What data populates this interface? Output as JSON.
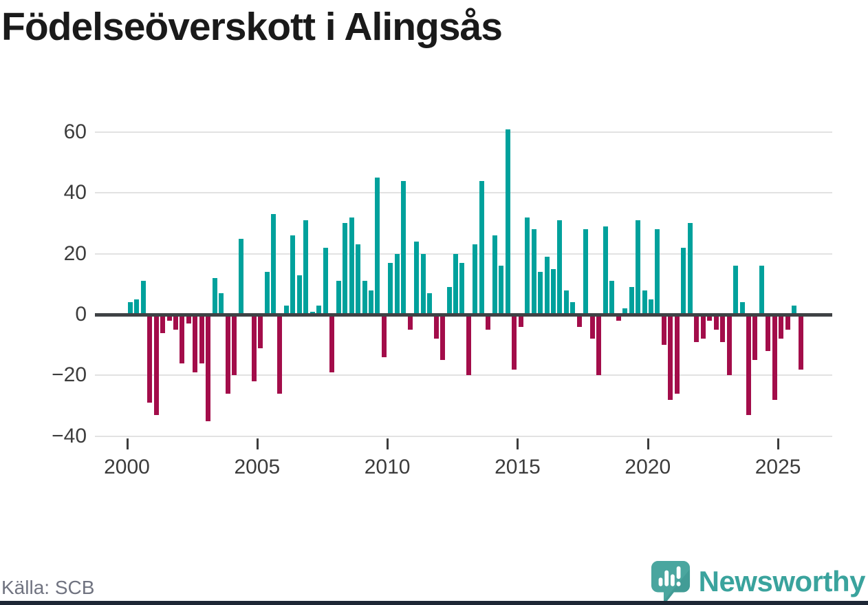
{
  "header": {
    "title": "Födelseöverskott i Alingsås"
  },
  "footer": {
    "source_label": "Källa: SCB",
    "brand": "Newsworthy"
  },
  "colors": {
    "positive": "#00a19c",
    "negative": "#a30d4a",
    "gridline": "#e2e2e2",
    "zero_line": "#3f4245",
    "axis_text": "#3c3c3c",
    "title_text": "#1a1a1a",
    "source_text": "#707380",
    "brand_teal": "#3aa39d",
    "bottom_strip": "#1e2735"
  },
  "chart_data": {
    "type": "bar",
    "title": "Födelseöverskott i Alingsås",
    "xlabel": "",
    "ylabel": "",
    "x_unit": "quarter",
    "start_year": 2000,
    "quarters_per_year": 4,
    "x_range": [
      "2000 Q1",
      "2025 Q4"
    ],
    "x_tick_years": [
      2000,
      2005,
      2010,
      2015,
      2020,
      2025
    ],
    "y_ticks": [
      60,
      40,
      20,
      0,
      -20,
      -40
    ],
    "ylim": [
      -42,
      65
    ],
    "grid": true,
    "legend": "none",
    "series": [
      {
        "name": "Födelseöverskott",
        "values": [
          4,
          5,
          11,
          -29,
          -33,
          -6,
          -2,
          -5,
          -16,
          -3,
          -19,
          -16,
          -35,
          12,
          7,
          -26,
          -20,
          25,
          0,
          -22,
          -11,
          14,
          33,
          -26,
          3,
          26,
          13,
          31,
          1,
          3,
          22,
          -19,
          11,
          30,
          32,
          23,
          11,
          8,
          45,
          -14,
          17,
          20,
          44,
          -5,
          24,
          20,
          7,
          -8,
          -15,
          9,
          20,
          17,
          -20,
          23,
          44,
          -5,
          26,
          16,
          61,
          -18,
          -4,
          32,
          28,
          14,
          19,
          15,
          31,
          8,
          4,
          -4,
          28,
          -8,
          -20,
          29,
          11,
          -2,
          2,
          9,
          31,
          8,
          5,
          28,
          -10,
          -28,
          -26,
          22,
          30,
          -9,
          -8,
          -2,
          -5,
          -9,
          -20,
          16,
          4,
          -33,
          -15,
          16,
          -12,
          -28,
          -8,
          -5,
          3,
          -18
        ]
      }
    ]
  }
}
